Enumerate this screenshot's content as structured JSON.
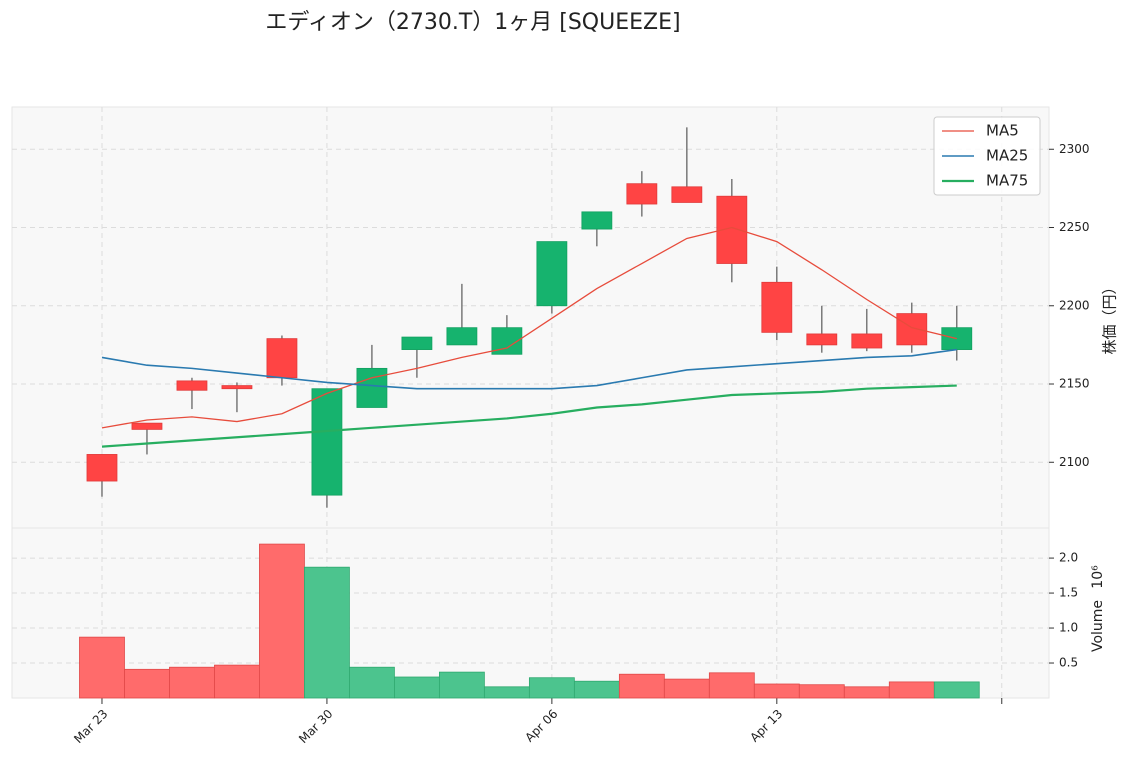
{
  "chart_data": [
    {
      "type": "candlestick",
      "title": "エディオン（2730.T）1ヶ月 [SQUEEZE]",
      "open": [
        2105,
        2125,
        2152,
        2149,
        2179,
        2079,
        2135,
        2172,
        2175,
        2169,
        2200,
        2249,
        2278,
        2276,
        2270,
        2215,
        2182,
        2182,
        2195,
        2172
      ],
      "high": [
        2105,
        2125,
        2154,
        2151,
        2181,
        2147,
        2175,
        2180,
        2214,
        2194,
        2241,
        2260,
        2286,
        2314,
        2281,
        2225,
        2200,
        2198,
        2202,
        2200
      ],
      "low": [
        2078,
        2105,
        2134,
        2132,
        2149,
        2071,
        2135,
        2154,
        2175,
        2169,
        2195,
        2238,
        2257,
        2266,
        2215,
        2178,
        2170,
        2171,
        2170,
        2165
      ],
      "close": [
        2088,
        2121,
        2146,
        2147,
        2154,
        2147,
        2160,
        2180,
        2186,
        2186,
        2241,
        2260,
        2265,
        2266,
        2227,
        2183,
        2175,
        2173,
        2175,
        2186
      ],
      "up_color": "#16b36e",
      "down_color": "#ff4444",
      "series": [
        {
          "name": "MA5",
          "color": "#e74c3c",
          "values": [
            2122,
            2127,
            2129,
            2126,
            2131,
            2144,
            2154,
            2160,
            2167,
            2173,
            2192,
            2211,
            2227,
            2243,
            2250,
            2241,
            2223,
            2204,
            2186,
            2179
          ]
        },
        {
          "name": "MA25",
          "color": "#2a7ab0",
          "values": [
            2167,
            2162,
            2160,
            2157,
            2154,
            2151,
            2149,
            2147,
            2147,
            2147,
            2147,
            2149,
            2154,
            2159,
            2161,
            2163,
            2165,
            2167,
            2168,
            2172
          ]
        },
        {
          "name": "MA75",
          "color": "#27ae60",
          "values": [
            2110,
            2112,
            2114,
            2116,
            2118,
            2120,
            2122,
            2124,
            2126,
            2128,
            2131,
            2135,
            2137,
            2140,
            2143,
            2144,
            2145,
            2147,
            2148,
            2149
          ]
        }
      ],
      "xlim": [
        -2,
        21.05
      ],
      "xticks": [
        {
          "value": 0,
          "label": "Mar 23"
        },
        {
          "value": 5,
          "label": "Mar 30"
        },
        {
          "value": 10,
          "label": "Apr 06"
        },
        {
          "value": 15,
          "label": "Apr 13"
        },
        {
          "value": 20,
          "label": null
        }
      ],
      "ylim": [
        2058,
        2327
      ],
      "yticks": [
        2100,
        2150,
        2200,
        2250,
        2300
      ],
      "y_label": "株価（円）",
      "legend": "upper right",
      "grid": true
    },
    {
      "type": "volume",
      "values": [
        0.87,
        0.41,
        0.44,
        0.47,
        2.2,
        1.87,
        0.44,
        0.3,
        0.37,
        0.16,
        0.29,
        0.24,
        0.34,
        0.27,
        0.36,
        0.2,
        0.19,
        0.16,
        0.23,
        0.23
      ],
      "up_color": "#4cc48e",
      "down_color": "#ff6b6b",
      "ylim": [
        0,
        2.43
      ],
      "yticks": [
        {
          "value": 0.5,
          "label": "0.5"
        },
        {
          "value": 1.0,
          "label": "1.0"
        },
        {
          "value": 1.5,
          "label": "1.5"
        },
        {
          "value": 2.0,
          "label": "2.0"
        }
      ],
      "y_label": "Volume",
      "offset_label": "10⁶",
      "grid": true
    }
  ]
}
